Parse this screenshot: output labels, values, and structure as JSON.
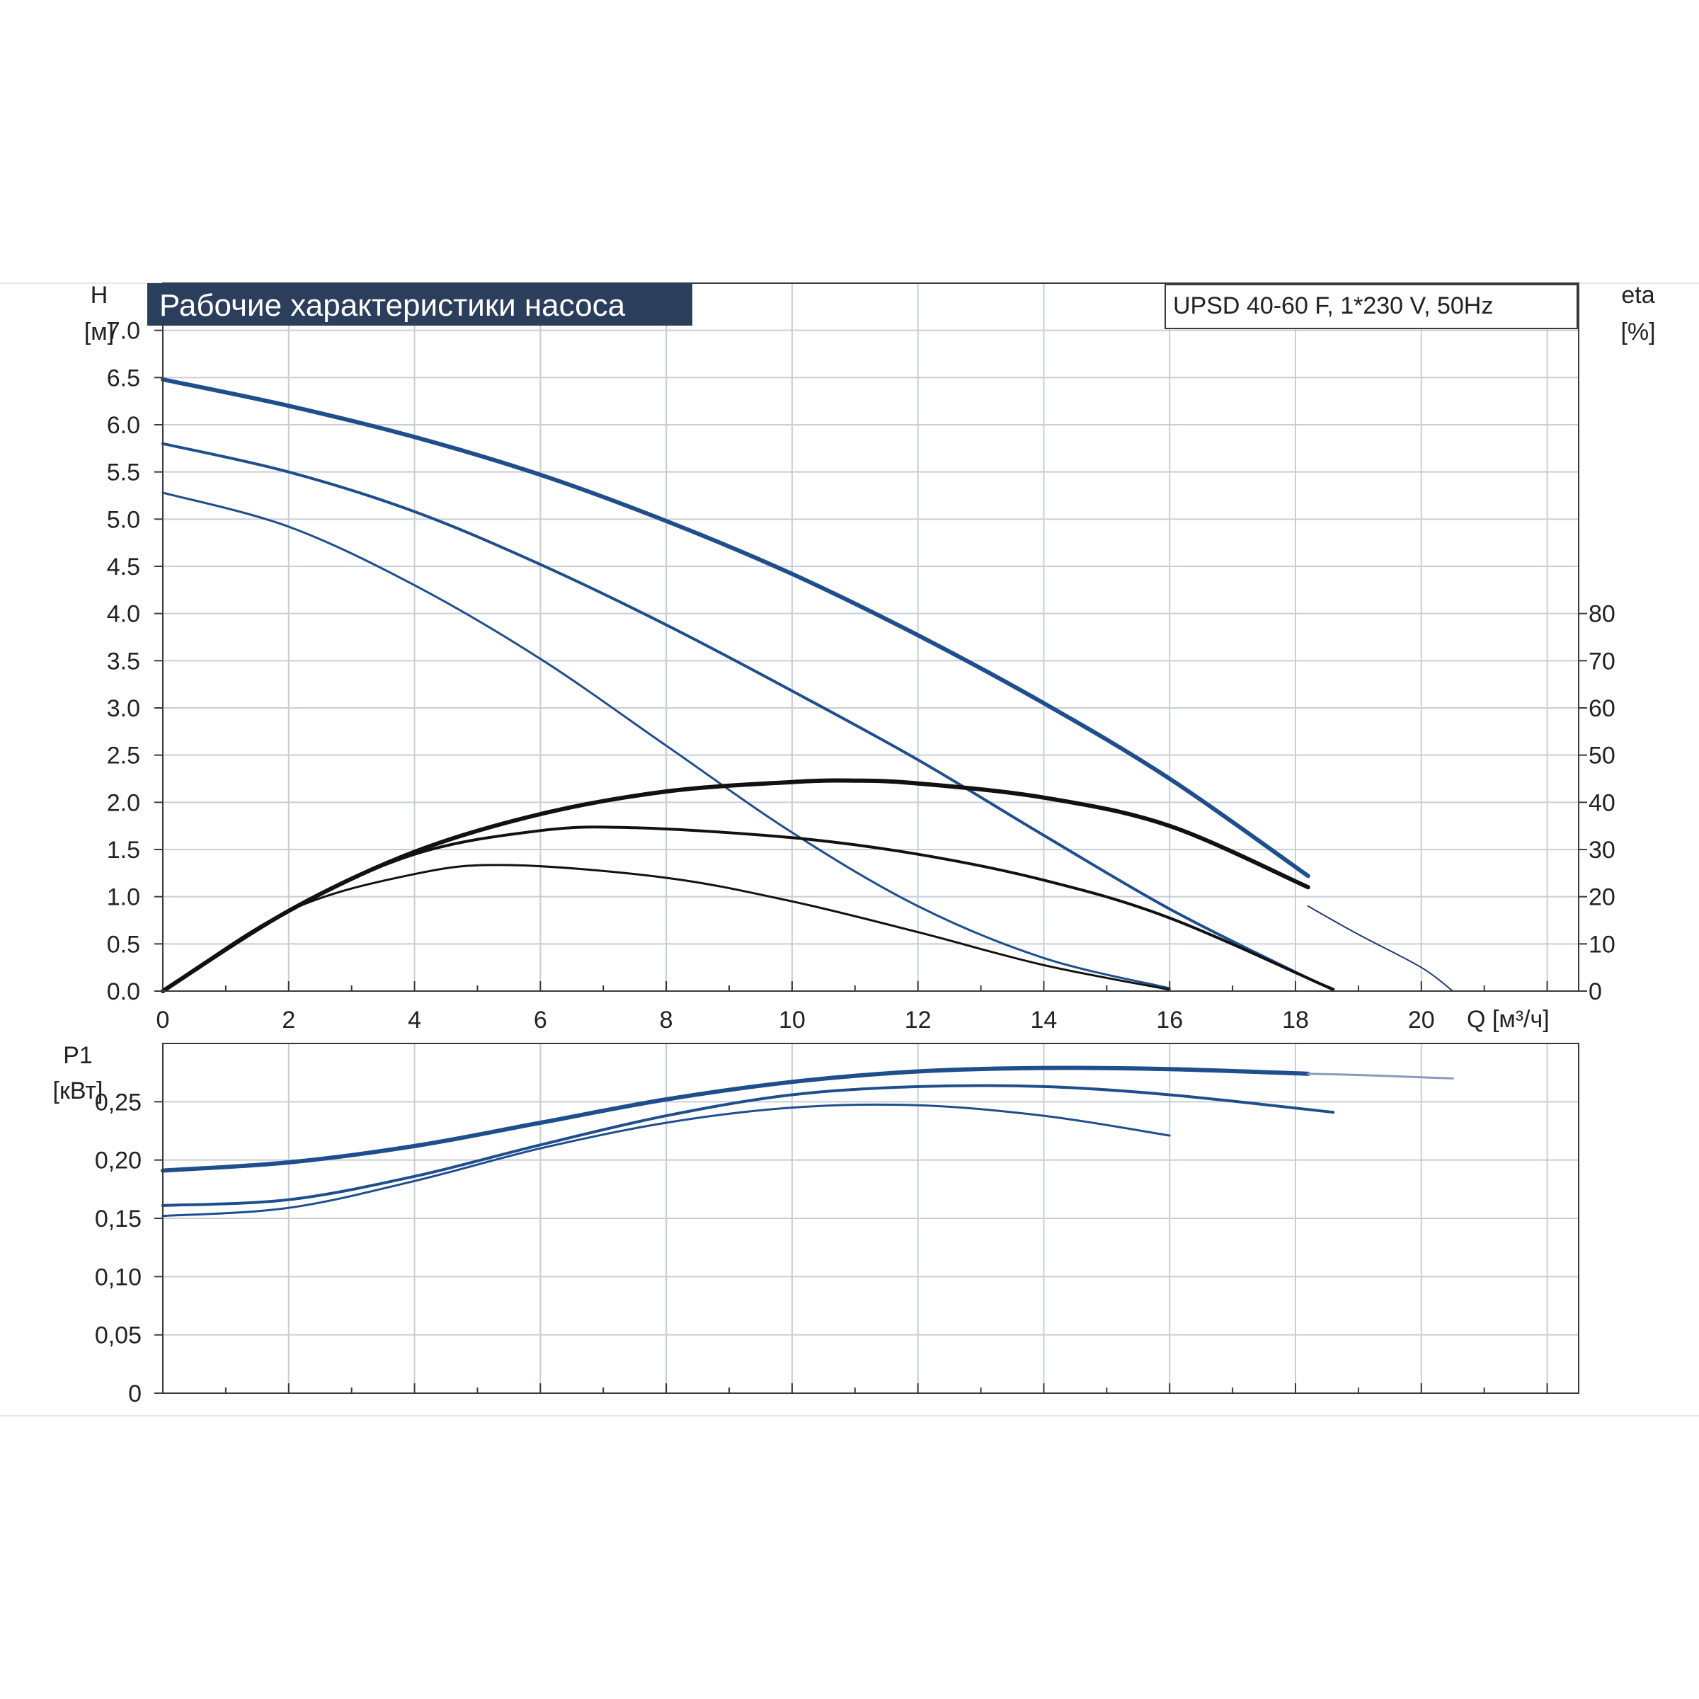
{
  "chart_data": [
    {
      "type": "line",
      "title": "Рабочие характеристики насоса",
      "model": "UPSD 40-60 F, 1*230 V, 50Hz",
      "ylabel": "H",
      "yunit": "[м]",
      "y2label": "eta",
      "y2unit": "[%]",
      "xlabel": "Q [м³/ч]",
      "xlim": [
        0,
        22.5
      ],
      "ylim": [
        0,
        7.5
      ],
      "y2lim": [
        0,
        80
      ],
      "xticks": [
        "0",
        "2",
        "4",
        "6",
        "8",
        "10",
        "12",
        "14",
        "16",
        "18",
        "20"
      ],
      "yticks": [
        "0.0",
        "0.5",
        "1.0",
        "1.5",
        "2.0",
        "2.5",
        "3.0",
        "3.5",
        "4.0",
        "4.5",
        "5.0",
        "5.5",
        "6.0",
        "6.5",
        "7.0"
      ],
      "y2ticks": [
        "0",
        "10",
        "20",
        "30",
        "40",
        "50",
        "60",
        "70",
        "80"
      ],
      "grid": true,
      "series": [
        {
          "kind": "head",
          "color": "#1f4e8c",
          "width": 6,
          "x": [
            0,
            2,
            4,
            6,
            8,
            10,
            12,
            14,
            16,
            18.2
          ],
          "y": [
            6.48,
            6.2,
            5.87,
            5.47,
            4.98,
            4.42,
            3.77,
            3.05,
            2.25,
            1.22
          ]
        },
        {
          "kind": "head-extension",
          "color": "#1f3a6e",
          "width": 2,
          "x": [
            18.2,
            19,
            20,
            20.5
          ],
          "y": [
            0.9,
            0.6,
            0.25,
            0.0
          ]
        },
        {
          "kind": "head",
          "color": "#1f4e8c",
          "width": 4,
          "x": [
            0,
            2,
            4,
            6,
            8,
            10,
            12,
            14,
            16,
            18,
            18.6
          ],
          "y": [
            5.8,
            5.5,
            5.08,
            4.52,
            3.88,
            3.18,
            2.45,
            1.65,
            0.87,
            0.2,
            0.02
          ]
        },
        {
          "kind": "head",
          "color": "#1f4e8c",
          "width": 3,
          "x": [
            0,
            2,
            4,
            6,
            8,
            10,
            12,
            14,
            16
          ],
          "y": [
            5.28,
            4.92,
            4.3,
            3.52,
            2.6,
            1.68,
            0.9,
            0.35,
            0.03
          ]
        },
        {
          "kind": "efficiency",
          "color": "#111111",
          "width": 6,
          "x": [
            0,
            2,
            4,
            6,
            8,
            10,
            11,
            12,
            14,
            16,
            18.2
          ],
          "y": [
            0,
            17,
            29.5,
            37.5,
            42.3,
            44.3,
            44.6,
            44,
            41,
            35,
            22
          ]
        },
        {
          "kind": "efficiency",
          "color": "#111111",
          "width": 4,
          "x": [
            0,
            2,
            4,
            6,
            7.5,
            10,
            12,
            14,
            16,
            18.6
          ],
          "y": [
            0,
            17,
            29,
            34,
            34.6,
            32.5,
            29,
            23.5,
            15.5,
            0.3
          ]
        },
        {
          "kind": "efficiency",
          "color": "#111111",
          "width": 3,
          "x": [
            0,
            2,
            4,
            5.5,
            8,
            10,
            12,
            14,
            16
          ],
          "y": [
            0,
            17,
            24.8,
            26.7,
            24,
            19,
            12.5,
            5.5,
            0.3
          ]
        }
      ]
    },
    {
      "type": "line",
      "ylabel": "P1",
      "yunit": "[кВт]",
      "xlim": [
        0,
        22.5
      ],
      "ylim": [
        0,
        0.3
      ],
      "yticks": [
        "0",
        "0,05",
        "0,10",
        "0,15",
        "0,20",
        "0,25"
      ],
      "grid": true,
      "series": [
        {
          "kind": "power",
          "color": "#1f4e8c",
          "width": 6,
          "x": [
            0,
            2,
            4,
            6,
            8,
            10,
            12,
            14,
            16,
            18.2
          ],
          "y": [
            0.191,
            0.198,
            0.212,
            0.232,
            0.252,
            0.267,
            0.276,
            0.279,
            0.278,
            0.274
          ]
        },
        {
          "kind": "power-extension",
          "color": "#8a9ab8",
          "width": 3,
          "x": [
            18.2,
            19,
            20,
            20.5
          ],
          "y": [
            0.274,
            0.273,
            0.271,
            0.27
          ]
        },
        {
          "kind": "power",
          "color": "#1f4e8c",
          "width": 4,
          "x": [
            0,
            2,
            4,
            6,
            8,
            10,
            12,
            14,
            16,
            18.6
          ],
          "y": [
            0.161,
            0.166,
            0.186,
            0.213,
            0.238,
            0.256,
            0.263,
            0.263,
            0.256,
            0.241
          ]
        },
        {
          "kind": "power",
          "color": "#1f4e8c",
          "width": 3,
          "x": [
            0,
            2,
            4,
            6,
            8,
            10,
            12,
            14,
            16
          ],
          "y": [
            0.152,
            0.159,
            0.182,
            0.21,
            0.232,
            0.245,
            0.247,
            0.238,
            0.221
          ]
        }
      ]
    }
  ]
}
